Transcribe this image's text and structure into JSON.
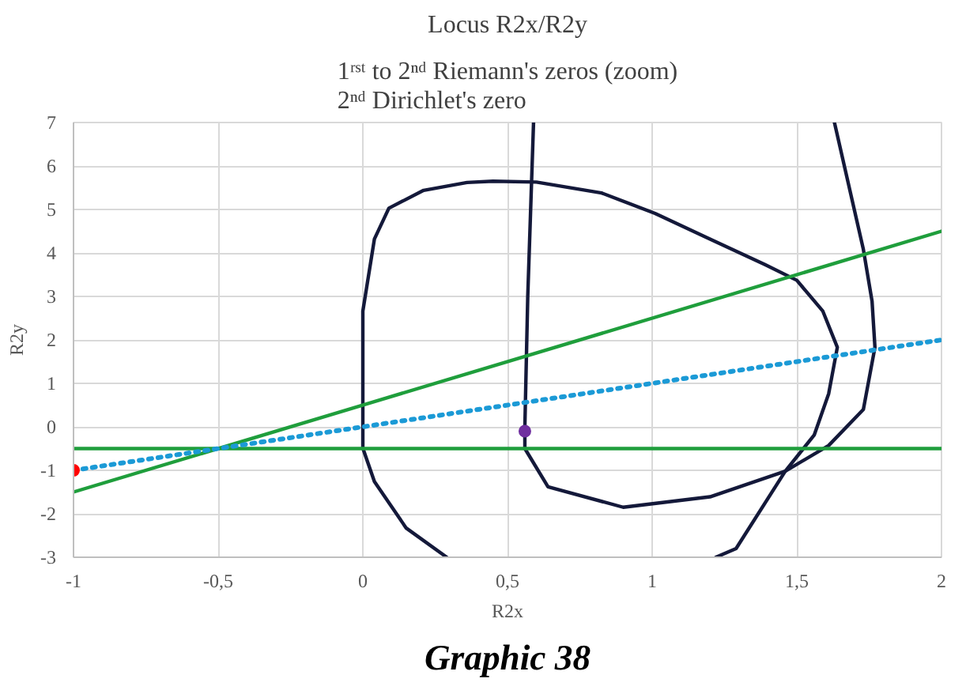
{
  "chart_data": {
    "type": "line",
    "title": "Locus R2x/R2y",
    "subtitle": "1ʳˢᵗ to 2ⁿᵈ Riemann's zeros (zoom)\n2ⁿᵈ Dirichlet's zero",
    "xlabel": "R2x",
    "ylabel": "R2y",
    "xlim": [
      -1,
      2
    ],
    "ylim": [
      -3,
      7
    ],
    "xticks": [
      -1,
      {
        "value": -0.5,
        "label": "-0,5"
      },
      0,
      {
        "value": 0.5,
        "label": "0,5"
      },
      1,
      {
        "value": 1.5,
        "label": "1,5"
      },
      2
    ],
    "yticks": [
      -3,
      -2,
      -1,
      0,
      1,
      2,
      3,
      4,
      5,
      6,
      7
    ],
    "grid": true,
    "annotations": [
      "Graphic 38"
    ],
    "series": [
      {
        "color": "#14193a",
        "line_style": "solid",
        "x": [
          0.29,
          0.15,
          0.04,
          0.0,
          0.0,
          0.0,
          0.04,
          0.09,
          0.21,
          0.36,
          0.45,
          0.6,
          0.825,
          1.01,
          1.2,
          1.39,
          1.5,
          1.59,
          1.64,
          1.61,
          1.56,
          1.46,
          1.29,
          1.22
        ],
        "values": [
          -3,
          -2.33,
          -1.26,
          -0.49,
          0.76,
          2.66,
          4.32,
          5.03,
          5.44,
          5.62,
          5.65,
          5.63,
          5.38,
          4.91,
          4.32,
          3.73,
          3.37,
          2.66,
          1.83,
          0.76,
          -0.19,
          -1.02,
          -2.8,
          -3
        ]
      },
      {
        "color": "#14193a",
        "line_style": "solid",
        "x": [
          0.59,
          0.57,
          0.56,
          0.56,
          0.64,
          0.9,
          1.2,
          1.46,
          1.61,
          1.73,
          1.77,
          1.76,
          1.73,
          1.63
        ],
        "values": [
          7,
          3,
          0,
          -0.5,
          -1.38,
          -1.85,
          -1.61,
          -1.02,
          -0.43,
          0.4,
          1.83,
          2.89,
          4.08,
          7
        ]
      },
      {
        "color": "#1f9e3c",
        "line_style": "solid",
        "x": [
          -1,
          2
        ],
        "values": [
          -1.5,
          4.5
        ]
      },
      {
        "color": "#1f9e3c",
        "line_style": "solid",
        "x": [
          -1,
          2
        ],
        "values": [
          -0.5,
          -0.5
        ]
      },
      {
        "color": "#1b9ad6",
        "line_style": "dotted",
        "x": [
          -1,
          2
        ],
        "values": [
          -1,
          2
        ]
      },
      {
        "type": "scatter",
        "color": "#ff0000",
        "marker": "circle",
        "x": [
          -1
        ],
        "values": [
          -1
        ]
      },
      {
        "type": "scatter",
        "color": "#7030a0",
        "marker": "circle",
        "x": [
          0.56
        ],
        "values": [
          -0.1
        ]
      }
    ]
  }
}
